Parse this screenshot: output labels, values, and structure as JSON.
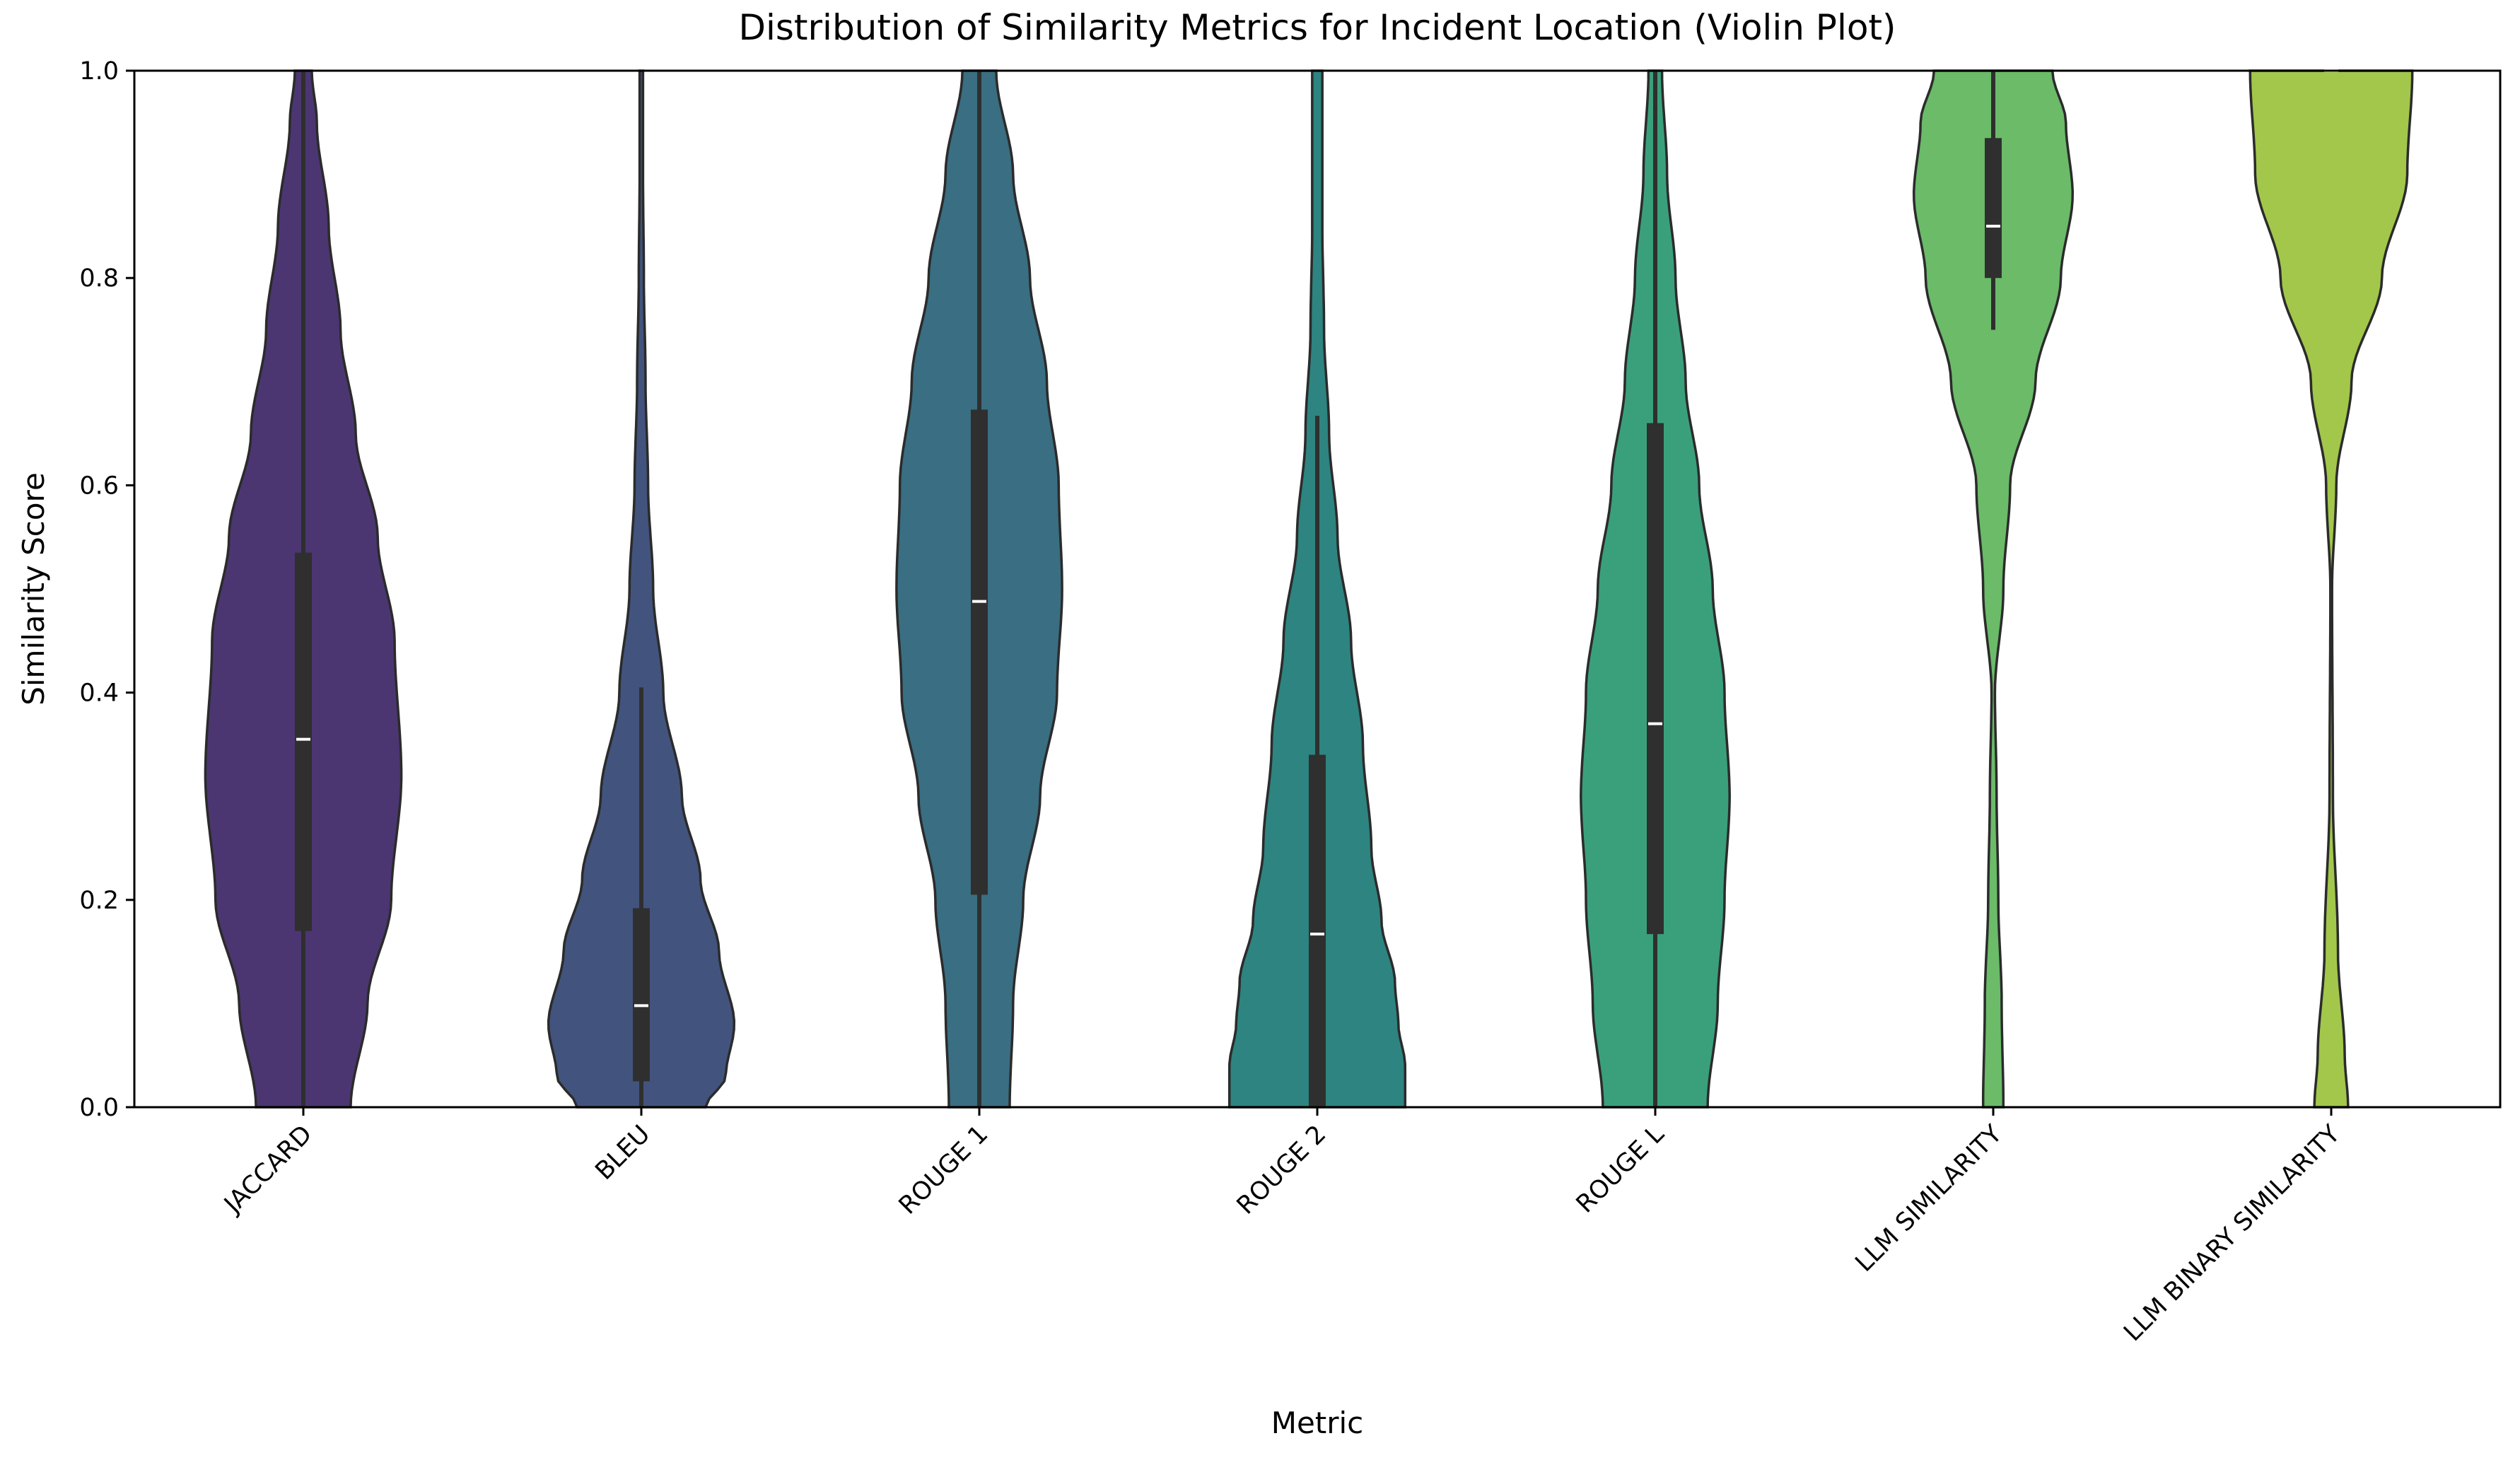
{
  "chart_data": {
    "type": "violin",
    "title": "Distribution of Similarity Metrics for Incident Location (Violin Plot)",
    "xlabel": "Metric",
    "ylabel": "Similarity Score",
    "ylim": [
      0,
      1
    ],
    "yticks": [
      "0.0",
      "0.2",
      "0.4",
      "0.6",
      "0.8",
      "1.0"
    ],
    "grid": false,
    "legend": "none",
    "categories": [
      "JACCARD",
      "BLEU",
      "ROUGE 1",
      "ROUGE 2",
      "ROUGE L",
      "LLM SIMILARITY",
      "LLM BINARY SIMILARITY"
    ],
    "colors": [
      "#4b3672",
      "#42547d",
      "#3a6e82",
      "#2e8480",
      "#3aa07c",
      "#6bbb69",
      "#a2c74b"
    ],
    "series": [
      {
        "values": [
          [
            0.0,
            0.28
          ],
          [
            0.1,
            0.38
          ],
          [
            0.2,
            0.52
          ],
          [
            0.32,
            0.58
          ],
          [
            0.45,
            0.54
          ],
          [
            0.55,
            0.44
          ],
          [
            0.65,
            0.31
          ],
          [
            0.75,
            0.22
          ],
          [
            0.85,
            0.15
          ],
          [
            0.95,
            0.08
          ],
          [
            1.0,
            0.05
          ]
        ],
        "box": {
          "q1": 0.17,
          "median": 0.355,
          "q3": 0.535,
          "whisker_low": 0.0,
          "whisker_high": 1.0
        }
      },
      {
        "values": [
          [
            0.0,
            0.38
          ],
          [
            0.03,
            0.5
          ],
          [
            0.08,
            0.55
          ],
          [
            0.15,
            0.46
          ],
          [
            0.22,
            0.35
          ],
          [
            0.3,
            0.24
          ],
          [
            0.4,
            0.13
          ],
          [
            0.5,
            0.07
          ],
          [
            0.6,
            0.04
          ],
          [
            0.7,
            0.025
          ],
          [
            0.8,
            0.015
          ],
          [
            0.9,
            0.01
          ],
          [
            1.0,
            0.01
          ]
        ],
        "box": {
          "q1": 0.025,
          "median": 0.098,
          "q3": 0.192,
          "whisker_low": 0.0,
          "whisker_high": 0.405
        }
      },
      {
        "values": [
          [
            0.0,
            0.18
          ],
          [
            0.1,
            0.2
          ],
          [
            0.2,
            0.26
          ],
          [
            0.3,
            0.36
          ],
          [
            0.4,
            0.46
          ],
          [
            0.5,
            0.49
          ],
          [
            0.6,
            0.47
          ],
          [
            0.7,
            0.4
          ],
          [
            0.8,
            0.3
          ],
          [
            0.9,
            0.2
          ],
          [
            1.0,
            0.1
          ]
        ],
        "box": {
          "q1": 0.205,
          "median": 0.488,
          "q3": 0.673,
          "whisker_low": 0.0,
          "whisker_high": 1.0
        }
      },
      {
        "values": [
          [
            0.0,
            0.52
          ],
          [
            0.04,
            0.52
          ],
          [
            0.08,
            0.48
          ],
          [
            0.12,
            0.46
          ],
          [
            0.18,
            0.38
          ],
          [
            0.25,
            0.32
          ],
          [
            0.35,
            0.27
          ],
          [
            0.45,
            0.2
          ],
          [
            0.55,
            0.12
          ],
          [
            0.65,
            0.07
          ],
          [
            0.75,
            0.04
          ],
          [
            0.85,
            0.03
          ],
          [
            0.95,
            0.03
          ],
          [
            1.0,
            0.03
          ]
        ],
        "box": {
          "q1": 0.0,
          "median": 0.167,
          "q3": 0.34,
          "whisker_low": 0.0,
          "whisker_high": 0.667
        }
      },
      {
        "values": [
          [
            0.0,
            0.31
          ],
          [
            0.1,
            0.37
          ],
          [
            0.2,
            0.41
          ],
          [
            0.3,
            0.44
          ],
          [
            0.4,
            0.41
          ],
          [
            0.5,
            0.34
          ],
          [
            0.6,
            0.26
          ],
          [
            0.7,
            0.18
          ],
          [
            0.8,
            0.12
          ],
          [
            0.9,
            0.07
          ],
          [
            1.0,
            0.04
          ]
        ],
        "box": {
          "q1": 0.167,
          "median": 0.37,
          "q3": 0.66,
          "whisker_low": 0.0,
          "whisker_high": 1.0
        }
      },
      {
        "values": [
          [
            0.0,
            0.06
          ],
          [
            0.1,
            0.05
          ],
          [
            0.2,
            0.03
          ],
          [
            0.3,
            0.02
          ],
          [
            0.4,
            0.01
          ],
          [
            0.5,
            0.06
          ],
          [
            0.6,
            0.1
          ],
          [
            0.7,
            0.25
          ],
          [
            0.8,
            0.4
          ],
          [
            0.88,
            0.47
          ],
          [
            0.95,
            0.43
          ],
          [
            1.0,
            0.35
          ]
        ],
        "box": {
          "q1": 0.8,
          "median": 0.85,
          "q3": 0.935,
          "whisker_low": 0.75,
          "whisker_high": 1.0
        }
      },
      {
        "values": [
          [
            0.0,
            0.1
          ],
          [
            0.05,
            0.08
          ],
          [
            0.15,
            0.04
          ],
          [
            0.3,
            0.01
          ],
          [
            0.5,
            0.005
          ],
          [
            0.6,
            0.03
          ],
          [
            0.7,
            0.12
          ],
          [
            0.8,
            0.3
          ],
          [
            0.9,
            0.45
          ],
          [
            1.0,
            0.48
          ]
        ],
        "box": {
          "q1": 1.0,
          "median": 1.0,
          "q3": 1.0,
          "whisker_low": 1.0,
          "whisker_high": 1.0
        }
      }
    ]
  }
}
